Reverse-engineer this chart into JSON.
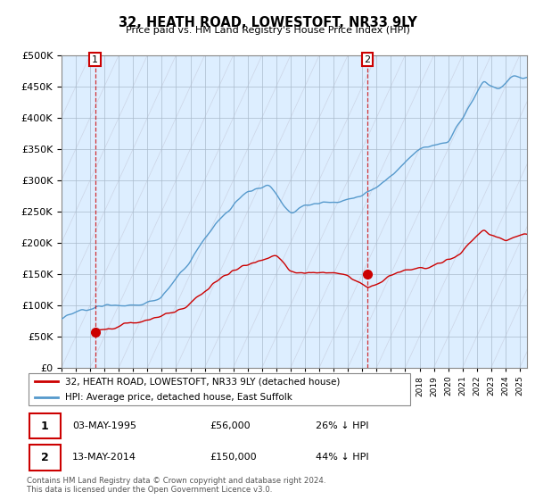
{
  "title": "32, HEATH ROAD, LOWESTOFT, NR33 9LY",
  "subtitle": "Price paid vs. HM Land Registry's House Price Index (HPI)",
  "ytick_values": [
    0,
    50000,
    100000,
    150000,
    200000,
    250000,
    300000,
    350000,
    400000,
    450000,
    500000
  ],
  "xlim": [
    1993.0,
    2025.5
  ],
  "ylim": [
    0,
    500000
  ],
  "hpi_color": "#5599cc",
  "price_color": "#cc0000",
  "bg_color": "#ddeeff",
  "hatch_color": "#cccccc",
  "marker1_date": "03-MAY-1995",
  "marker1_price": 56000,
  "marker1_pct": "26% ↓ HPI",
  "marker1_x": 1995.34,
  "marker2_date": "13-MAY-2014",
  "marker2_price": 150000,
  "marker2_pct": "44% ↓ HPI",
  "marker2_x": 2014.36,
  "legend_line1": "32, HEATH ROAD, LOWESTOFT, NR33 9LY (detached house)",
  "legend_line2": "HPI: Average price, detached house, East Suffolk",
  "footnote": "Contains HM Land Registry data © Crown copyright and database right 2024.\nThis data is licensed under the Open Government Licence v3.0."
}
